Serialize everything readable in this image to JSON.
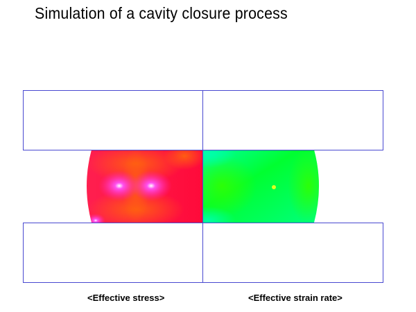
{
  "title": "Simulation of a cavity closure process",
  "panels": [
    {
      "caption": "<Effective stress>",
      "dominant_colors": [
        "#ff1040",
        "#ff5a10",
        "#ff40e0"
      ]
    },
    {
      "caption": "<Effective strain rate>",
      "dominant_colors": [
        "#00ff40",
        "#00ffa0",
        "#30ff00"
      ]
    }
  ],
  "outline_color": "#4040d0"
}
